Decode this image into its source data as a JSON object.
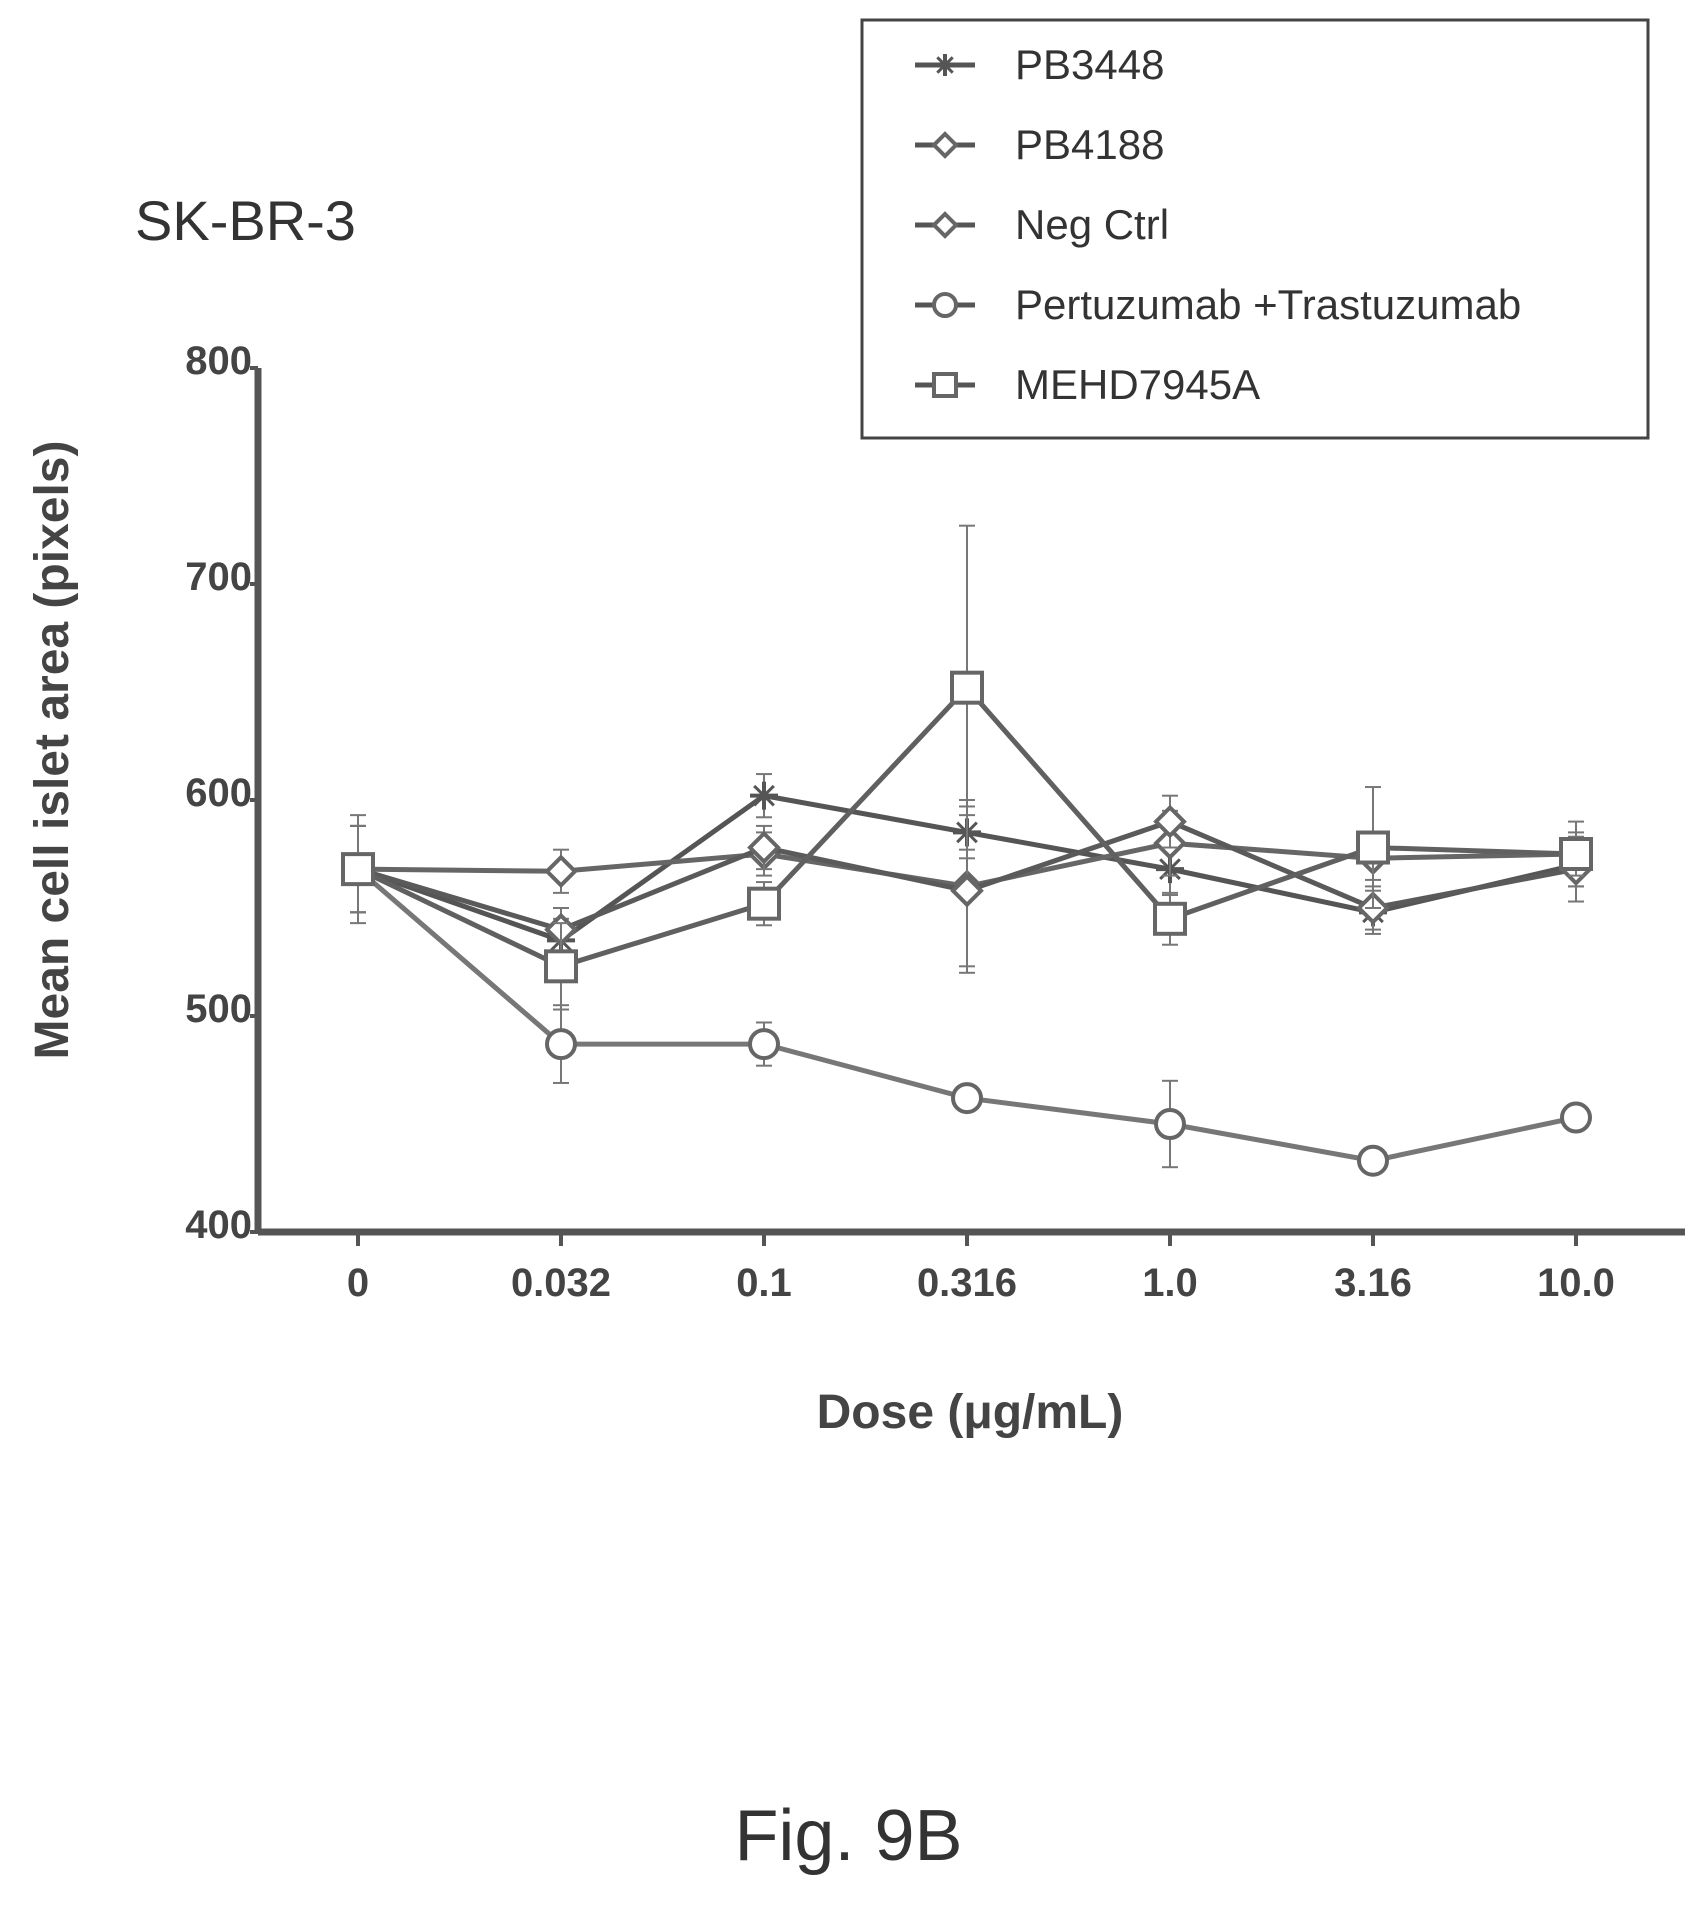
{
  "figure_caption": "Fig. 9B",
  "chart_data": {
    "type": "line",
    "title": "SK-BR-3",
    "xlabel": "Dose (μg/mL)",
    "ylabel": "Mean cell islet area  (pixels)",
    "categories": [
      "0",
      "0.032",
      "0.1",
      "0.316",
      "1.0",
      "3.16",
      "10.0"
    ],
    "ylim": [
      400,
      800
    ],
    "yticks": [
      "400",
      "500",
      "600",
      "700",
      "800"
    ],
    "legend_position": "top-right",
    "series": [
      {
        "name": "PB3448",
        "marker": "star",
        "values": [
          568,
          535,
          602,
          585,
          568,
          548,
          570
        ],
        "errors": [
          25,
          10,
          10,
          12,
          12,
          10,
          10
        ]
      },
      {
        "name": "PB4188",
        "marker": "diamond",
        "values": [
          568,
          567,
          575,
          560,
          580,
          573,
          575
        ],
        "errors": [
          20,
          10,
          10,
          40,
          15,
          10,
          15
        ]
      },
      {
        "name": "Neg Ctrl",
        "marker": "diamond",
        "values": [
          568,
          540,
          578,
          558,
          590,
          550,
          568
        ],
        "errors": [
          20,
          10,
          10,
          35,
          12,
          10,
          15
        ]
      },
      {
        "name": "Pertuzumab +Trastuzumab",
        "marker": "circle",
        "values": [
          568,
          487,
          487,
          462,
          450,
          433,
          453
        ],
        "errors": [
          20,
          18,
          10,
          5,
          20,
          5,
          5
        ]
      },
      {
        "name": "MEHD7945A",
        "marker": "square",
        "values": [
          568,
          523,
          552,
          652,
          545,
          578,
          575
        ],
        "errors": [
          20,
          20,
          10,
          75,
          12,
          28,
          10
        ]
      }
    ]
  }
}
